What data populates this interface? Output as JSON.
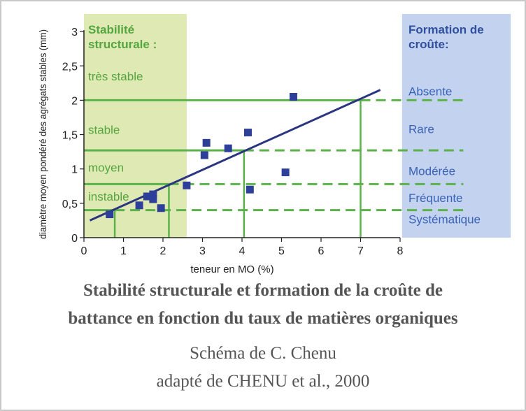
{
  "colors": {
    "green_zone": "#dfe9b4",
    "blue_zone": "#c3d3ef",
    "green_line": "#5cb24a",
    "green_text": "#54a63e",
    "blue_text": "#2f4f9f",
    "blue_label": "#3a62b8",
    "trend": "#2b3580",
    "marker": "#2e3f9a",
    "axis": "#222222",
    "caption": "#555555"
  },
  "chart_data": {
    "type": "scatter",
    "xlabel": "teneur en  MO (%)",
    "ylabel": "diamètre moyen pondéré des agrégats stables (mm)",
    "xlim": [
      0,
      8
    ],
    "ylim": [
      0,
      3
    ],
    "x_ticks": [
      "0",
      "1",
      "2",
      "3",
      "4",
      "5",
      "6",
      "7",
      "8"
    ],
    "y_ticks": [
      {
        "v": 0,
        "label": "0"
      },
      {
        "v": 0.5,
        "label": "0,5"
      },
      {
        "v": 1,
        "label": "1"
      },
      {
        "v": 1.5,
        "label": "1,5"
      },
      {
        "v": 2,
        "label": "2"
      },
      {
        "v": 2.5,
        "label": "2,5"
      },
      {
        "v": 3,
        "label": "3"
      }
    ],
    "points": [
      {
        "x": 0.65,
        "y": 0.34
      },
      {
        "x": 1.4,
        "y": 0.47
      },
      {
        "x": 1.6,
        "y": 0.6
      },
      {
        "x": 1.75,
        "y": 0.63
      },
      {
        "x": 1.75,
        "y": 0.56
      },
      {
        "x": 1.95,
        "y": 0.43
      },
      {
        "x": 2.6,
        "y": 0.76
      },
      {
        "x": 3.05,
        "y": 1.2
      },
      {
        "x": 3.1,
        "y": 1.38
      },
      {
        "x": 3.65,
        "y": 1.3
      },
      {
        "x": 4.15,
        "y": 1.53
      },
      {
        "x": 4.2,
        "y": 0.7
      },
      {
        "x": 5.1,
        "y": 0.95
      },
      {
        "x": 5.3,
        "y": 2.05
      }
    ],
    "trend_line": {
      "x0": 0.15,
      "y0": 0.25,
      "x1": 7.5,
      "y1": 2.15
    },
    "stability_zone": {
      "x_range": [
        0,
        2.6
      ],
      "title_lines": [
        "Stabilité",
        "structurale :"
      ],
      "labels": [
        {
          "text": "très stable",
          "y": 2.35
        },
        {
          "text": "stable",
          "y": 1.57
        },
        {
          "text": "moyen",
          "y": 1.02
        },
        {
          "text": "instable",
          "y": 0.6
        }
      ]
    },
    "crust_zone": {
      "x_range": [
        8.05,
        10.8
      ],
      "title_lines": [
        "Formation de",
        "croûte:"
      ],
      "labels": [
        {
          "text": "Absente",
          "y": 2.13
        },
        {
          "text": "Rare",
          "y": 1.58
        },
        {
          "text": "Modérée",
          "y": 0.97
        },
        {
          "text": "Fréquente",
          "y": 0.58
        },
        {
          "text": "Systématique",
          "y": 0.27
        }
      ]
    },
    "thresholds": [
      {
        "y": 2.0,
        "x": 7.0,
        "dash_end": 9.7
      },
      {
        "y": 1.27,
        "x": 4.05,
        "dash_end": 9.6
      },
      {
        "y": 0.78,
        "x": 2.15,
        "dash_end": 9.6
      },
      {
        "y": 0.4,
        "x": 0.78,
        "dash_end": 9.7
      }
    ]
  },
  "caption": {
    "title_line1": "Stabilité structurale et formation de la croûte de",
    "title_line2": "battance en fonction du taux de matières organiques",
    "author": "Schéma de C. Chenu",
    "source": "adapté de CHENU et al., 2000"
  }
}
